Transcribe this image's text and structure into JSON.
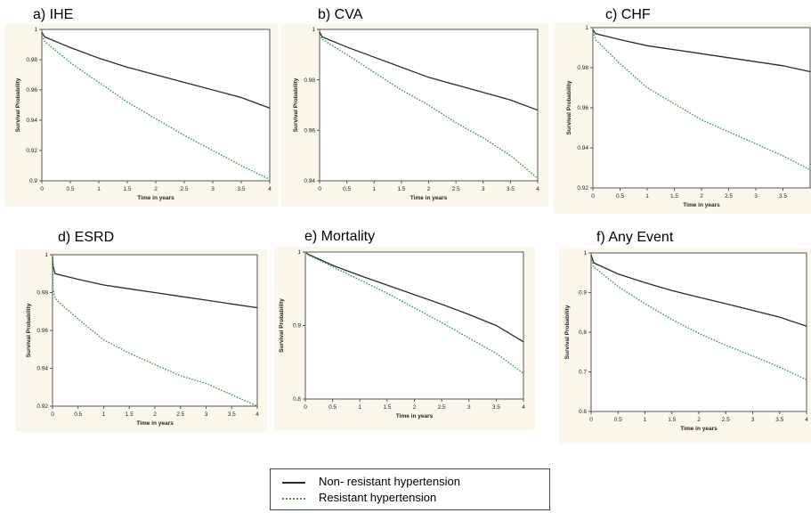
{
  "legend": {
    "items": [
      {
        "label": "Non- resistant hypertension",
        "color": "#2b2b2b",
        "style": "solid"
      },
      {
        "label": "Resistant hypertension",
        "color": "#3c9a4a",
        "style": "dotted"
      }
    ]
  },
  "chart_data": [
    {
      "type": "line",
      "title": "a) IHE",
      "xlabel": "Time in years",
      "ylabel": "Survival Probability",
      "xlim": [
        0,
        4
      ],
      "ylim": [
        0.9,
        1.0
      ],
      "xticks": [
        "0",
        "0.5",
        "1",
        "1.5",
        "2",
        "2.5",
        "3",
        "3.5",
        "4"
      ],
      "yticks": [
        "1",
        "0.98",
        "0.96",
        "0.94",
        "0.92",
        "0.9"
      ],
      "x": [
        0,
        0.05,
        0.5,
        1,
        1.5,
        2,
        2.5,
        3,
        3.5,
        4
      ],
      "series": [
        {
          "name": "Non- resistant hypertension",
          "values": [
            0.998,
            0.995,
            0.988,
            0.981,
            0.975,
            0.97,
            0.965,
            0.96,
            0.955,
            0.948
          ]
        },
        {
          "name": "Resistant hypertension",
          "values": [
            0.996,
            0.992,
            0.978,
            0.965,
            0.952,
            0.941,
            0.93,
            0.92,
            0.91,
            0.901
          ]
        }
      ]
    },
    {
      "type": "line",
      "title": "b) CVA",
      "xlabel": "Time in years",
      "ylabel": "Survival Probability",
      "xlim": [
        0,
        4
      ],
      "ylim": [
        0.94,
        1.0
      ],
      "xticks": [
        "0",
        "0.5",
        "1",
        "1.5",
        "2",
        "2.5",
        "3",
        "3.5",
        "4"
      ],
      "yticks": [
        "1",
        "0.98",
        "0.96",
        "0.94"
      ],
      "x": [
        0,
        0.05,
        0.5,
        1,
        1.5,
        2,
        2.5,
        3,
        3.5,
        4
      ],
      "series": [
        {
          "name": "Non- resistant hypertension",
          "values": [
            0.999,
            0.997,
            0.993,
            0.989,
            0.985,
            0.981,
            0.978,
            0.975,
            0.972,
            0.968
          ]
        },
        {
          "name": "Resistant hypertension",
          "values": [
            0.998,
            0.996,
            0.99,
            0.983,
            0.976,
            0.97,
            0.963,
            0.957,
            0.95,
            0.941
          ]
        }
      ]
    },
    {
      "type": "line",
      "title": "c) CHF",
      "xlabel": "Time in years",
      "ylabel": "Survival Probability",
      "xlim": [
        0,
        4
      ],
      "ylim": [
        0.92,
        1.0
      ],
      "xticks": [
        "0",
        "0.5",
        "1",
        "1.5",
        "2",
        "2.5",
        "3",
        "3.5"
      ],
      "yticks": [
        "1",
        "0.98",
        "0.96",
        "0.94",
        "0.92"
      ],
      "x": [
        0,
        0.05,
        0.5,
        1,
        1.5,
        2,
        2.5,
        3,
        3.5,
        4
      ],
      "series": [
        {
          "name": "Non- resistant hypertension",
          "values": [
            0.999,
            0.997,
            0.994,
            0.991,
            0.989,
            0.987,
            0.985,
            0.983,
            0.981,
            0.978
          ]
        },
        {
          "name": "Resistant hypertension",
          "values": [
            0.998,
            0.994,
            0.982,
            0.97,
            0.962,
            0.954,
            0.948,
            0.942,
            0.936,
            0.929
          ]
        }
      ]
    },
    {
      "type": "line",
      "title": "d) ESRD",
      "xlabel": "Time in years",
      "ylabel": "Survival Probability",
      "xlim": [
        0,
        4
      ],
      "ylim": [
        0.92,
        1.0
      ],
      "xticks": [
        "0",
        "0.5",
        "1",
        "1.5",
        "2",
        "2.5",
        "3",
        "3.5",
        "4"
      ],
      "yticks": [
        "1",
        "0.98",
        "0.96",
        "0.94",
        "0.92"
      ],
      "x": [
        0,
        0.01,
        0.05,
        0.2,
        0.5,
        1,
        1.5,
        2,
        2.5,
        3,
        3.5,
        4
      ],
      "series": [
        {
          "name": "Non- resistant hypertension",
          "values": [
            0.999,
            0.994,
            0.99,
            0.989,
            0.987,
            0.984,
            0.982,
            0.98,
            0.978,
            0.976,
            0.974,
            0.972
          ]
        },
        {
          "name": "Resistant hypertension",
          "values": [
            0.999,
            0.982,
            0.977,
            0.973,
            0.966,
            0.955,
            0.948,
            0.942,
            0.936,
            0.932,
            0.926,
            0.92
          ]
        }
      ]
    },
    {
      "type": "line",
      "title": "e) Mortality",
      "xlabel": "Time in years",
      "ylabel": "Survival Probability",
      "xlim": [
        0,
        4
      ],
      "ylim": [
        0.8,
        1.0
      ],
      "xticks": [
        "0",
        "0.5",
        "1",
        "1.5",
        "2",
        "2.5",
        "3",
        "3.5",
        "4"
      ],
      "yticks": [
        "1",
        "0.9",
        "0.8"
      ],
      "x": [
        0,
        0.05,
        0.5,
        1,
        1.5,
        2,
        2.5,
        3,
        3.5,
        4
      ],
      "series": [
        {
          "name": "Non- resistant hypertension",
          "values": [
            1.0,
            0.997,
            0.982,
            0.968,
            0.955,
            0.942,
            0.929,
            0.915,
            0.9,
            0.878
          ]
        },
        {
          "name": "Resistant hypertension",
          "values": [
            1.0,
            0.996,
            0.98,
            0.962,
            0.944,
            0.924,
            0.904,
            0.883,
            0.862,
            0.835
          ]
        }
      ]
    },
    {
      "type": "line",
      "title": "f) Any Event",
      "xlabel": "Time in years",
      "ylabel": "Survival Probability",
      "xlim": [
        0,
        4
      ],
      "ylim": [
        0.6,
        1.0
      ],
      "xticks": [
        "0",
        "0.5",
        "1",
        "1.5",
        "2",
        "2.5",
        "3",
        "3.5",
        "4"
      ],
      "yticks": [
        "1",
        "0.9",
        "0.8",
        "0.7",
        "0.6"
      ],
      "x": [
        0,
        0.05,
        0.5,
        1,
        1.5,
        2,
        2.5,
        3,
        3.5,
        4
      ],
      "series": [
        {
          "name": "Non- resistant hypertension",
          "values": [
            0.995,
            0.975,
            0.947,
            0.925,
            0.905,
            0.888,
            0.872,
            0.855,
            0.838,
            0.815
          ]
        },
        {
          "name": "Resistant hypertension",
          "values": [
            0.99,
            0.965,
            0.915,
            0.872,
            0.832,
            0.797,
            0.767,
            0.74,
            0.712,
            0.68
          ]
        }
      ]
    }
  ]
}
